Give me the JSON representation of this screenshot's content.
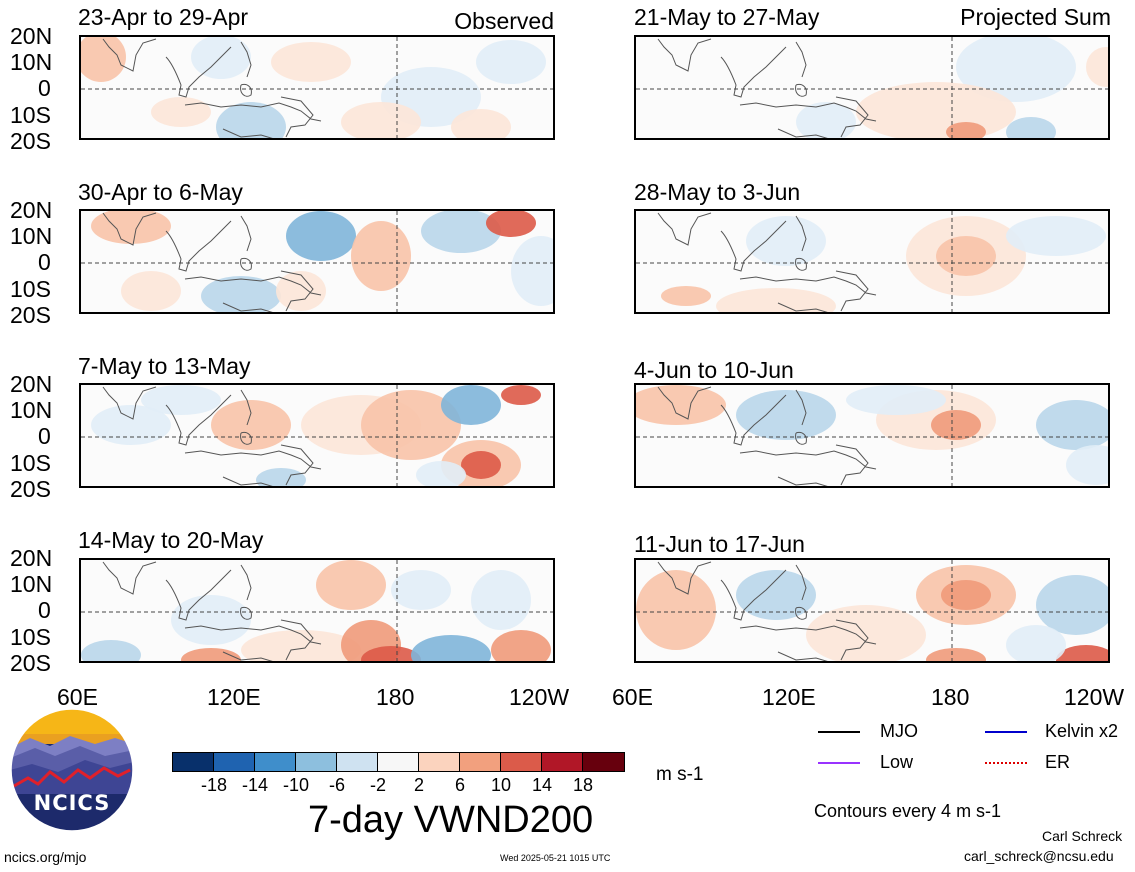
{
  "panels": [
    {
      "id": "p1",
      "title": "23-Apr to 29-Apr",
      "label": "Observed"
    },
    {
      "id": "p2",
      "title": "21-May to 27-May",
      "label": "Projected Sum"
    },
    {
      "id": "p3",
      "title": "30-Apr to 6-May",
      "label": ""
    },
    {
      "id": "p4",
      "title": "28-May to 3-Jun",
      "label": ""
    },
    {
      "id": "p5",
      "title": "7-May to 13-May",
      "label": ""
    },
    {
      "id": "p6",
      "title": "4-Jun to 10-Jun",
      "label": ""
    },
    {
      "id": "p7",
      "title": "14-May to 20-May",
      "label": ""
    },
    {
      "id": "p8",
      "title": "11-Jun to 17-Jun",
      "label": ""
    }
  ],
  "y_ticks": [
    "20N",
    "10N",
    "0",
    "10S",
    "20S"
  ],
  "x_ticks": [
    "60E",
    "120E",
    "180",
    "120W"
  ],
  "x_ticks_right": [
    "60E",
    "120E",
    "180",
    "120W"
  ],
  "colorbar": {
    "ticks": [
      "-18",
      "-14",
      "-10",
      "-6",
      "-2",
      "2",
      "6",
      "10",
      "14",
      "18"
    ],
    "units": "m s-1",
    "colors": [
      "#08306b",
      "#1f63b0",
      "#3f8ecb",
      "#8dbfde",
      "#cfe2f1",
      "#f7f7f7",
      "#fbd3be",
      "#f2a07e",
      "#db5b4a",
      "#b11727",
      "#67000d"
    ]
  },
  "main_title": "7-day VWND200",
  "logo_text": "NCICS",
  "legend": {
    "mjo": "MJO",
    "kelvin": "Kelvin x2",
    "low": "Low",
    "er": "ER",
    "colors": {
      "mjo": "#000000",
      "kelvin": "#0000cc",
      "low": "#9933ff",
      "er": "#dd0000"
    }
  },
  "contour_note": "Contours every 4 m s-1",
  "author": "Carl Schreck",
  "email": "carl_schreck@ncsu.edu",
  "website": "ncics.org/mjo",
  "timestamp": "Wed 2025-05-21 1015 UTC"
}
